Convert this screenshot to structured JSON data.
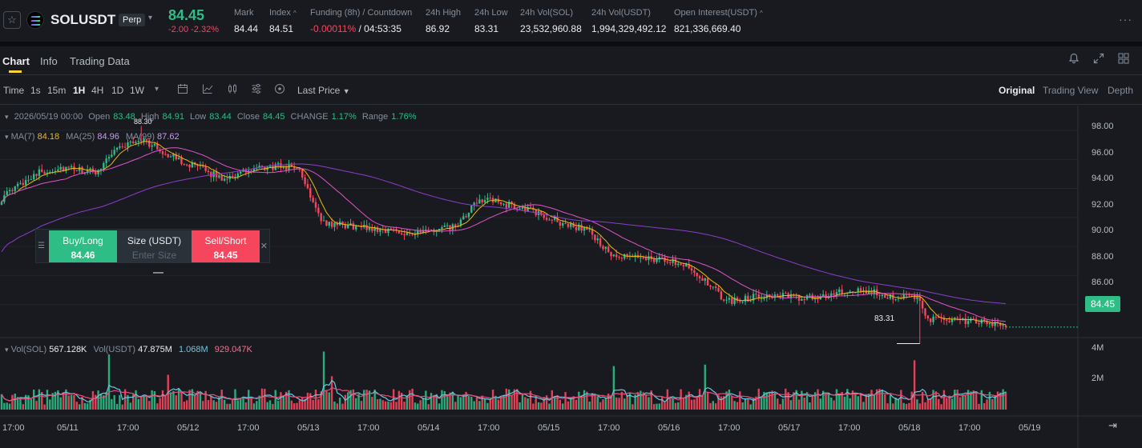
{
  "header": {
    "symbol": "SOLUSDT",
    "contract_type": "Perp",
    "last_price": "84.45",
    "change": "-2.00",
    "change_pct": "-2.32%",
    "stats": {
      "mark_label": "Mark",
      "mark": "84.44",
      "index_label": "Index",
      "index": "84.51",
      "funding_label": "Funding (8h) / Countdown",
      "funding_rate": "-0.00011%",
      "countdown": "/ 04:53:35",
      "high_label": "24h High",
      "high": "86.92",
      "low_label": "24h Low",
      "low": "83.31",
      "vol_base_label": "24h Vol(SOL)",
      "vol_base": "23,532,960.88",
      "vol_quote_label": "24h Vol(USDT)",
      "vol_quote": "1,994,329,492.12",
      "oi_label": "Open Interest(USDT)",
      "oi": "821,336,669.40"
    }
  },
  "tabs": [
    "Chart",
    "Info",
    "Trading Data"
  ],
  "toolbar": {
    "timeframes": [
      "Time",
      "1s",
      "15m",
      "1H",
      "4H",
      "1D",
      "1W"
    ],
    "active_timeframe": "1H",
    "price_type": "Last Price",
    "views": [
      "Original",
      "Trading View",
      "Depth"
    ]
  },
  "legend": {
    "date": "2026/05/19 00:00",
    "open_label": "Open",
    "open": "83.48",
    "high_label": "High",
    "high": "84.91",
    "low_label": "Low",
    "low": "83.44",
    "close_label": "Close",
    "close": "84.45",
    "change_label": "CHANGE",
    "change": "1.17%",
    "range_label": "Range",
    "range": "1.76%",
    "ma7_label": "MA(7)",
    "ma7": "84.18",
    "ma25_label": "MA(25)",
    "ma25": "84.96",
    "ma99_label": "MA(99)",
    "ma99": "87.62",
    "vol_sol_label": "Vol(SOL)",
    "vol_sol": "567.128K",
    "vol_usdt_label": "Vol(USDT)",
    "vol_usdt": "47.875M",
    "vol_ma1": "1.068M",
    "vol_ma2": "929.047K"
  },
  "trade_widget": {
    "buy_label": "Buy/Long",
    "buy_price": "84.46",
    "size_label": "Size (USDT)",
    "size_placeholder": "Enter Size",
    "sell_label": "Sell/Short",
    "sell_price": "84.45"
  },
  "chart": {
    "current_price": "84.45",
    "low_marker": "83.31",
    "high_marker": "88.30",
    "y_ticks": [
      "98.00",
      "96.00",
      "94.00",
      "92.00",
      "90.00",
      "88.00",
      "86.00"
    ],
    "vol_ticks": [
      "4M",
      "2M"
    ],
    "x_ticks": [
      "17:00",
      "05/11",
      "17:00",
      "05/12",
      "17:00",
      "05/13",
      "17:00",
      "05/14",
      "17:00",
      "05/15",
      "17:00",
      "05/16",
      "17:00",
      "05/17",
      "17:00",
      "05/18",
      "17:00",
      "05/19"
    ],
    "up_color": "#2ebd85",
    "down_color": "#f6465d"
  },
  "chart_data": {
    "type": "candlestick",
    "interval": "1H",
    "y_range": [
      84,
      98.6
    ],
    "waypoints": [
      [
        0,
        93.3
      ],
      [
        12,
        95.0
      ],
      [
        22,
        95.4
      ],
      [
        35,
        95.1
      ],
      [
        42,
        96.7
      ],
      [
        52,
        97.4
      ],
      [
        62,
        96.3
      ],
      [
        72,
        95.5
      ],
      [
        82,
        94.7
      ],
      [
        92,
        95.2
      ],
      [
        102,
        95.5
      ],
      [
        110,
        95.5
      ],
      [
        120,
        91.6
      ],
      [
        135,
        91.3
      ],
      [
        155,
        90.9
      ],
      [
        170,
        91.4
      ],
      [
        178,
        93.3
      ],
      [
        195,
        92.6
      ],
      [
        210,
        91.5
      ],
      [
        218,
        91.2
      ],
      [
        228,
        89.2
      ],
      [
        238,
        89.3
      ],
      [
        255,
        88.8
      ],
      [
        270,
        86.2
      ],
      [
        285,
        86.7
      ],
      [
        300,
        86.4
      ],
      [
        312,
        86.8
      ],
      [
        322,
        86.9
      ],
      [
        335,
        86.5
      ],
      [
        342,
        86.4
      ],
      [
        345,
        85.0
      ],
      [
        365,
        84.8
      ],
      [
        374,
        84.4
      ]
    ],
    "volume_range_millions": [
      0,
      4.3
    ],
    "volume_spikes_millions": [
      [
        40,
        3.8
      ],
      [
        62,
        2.4
      ],
      [
        120,
        4.0
      ],
      [
        123,
        2.3
      ],
      [
        228,
        3.0
      ],
      [
        262,
        3.1
      ],
      [
        340,
        3.4
      ]
    ],
    "ma7_last": 84.18,
    "ma25_last": 84.96,
    "ma99_last": 87.62
  }
}
